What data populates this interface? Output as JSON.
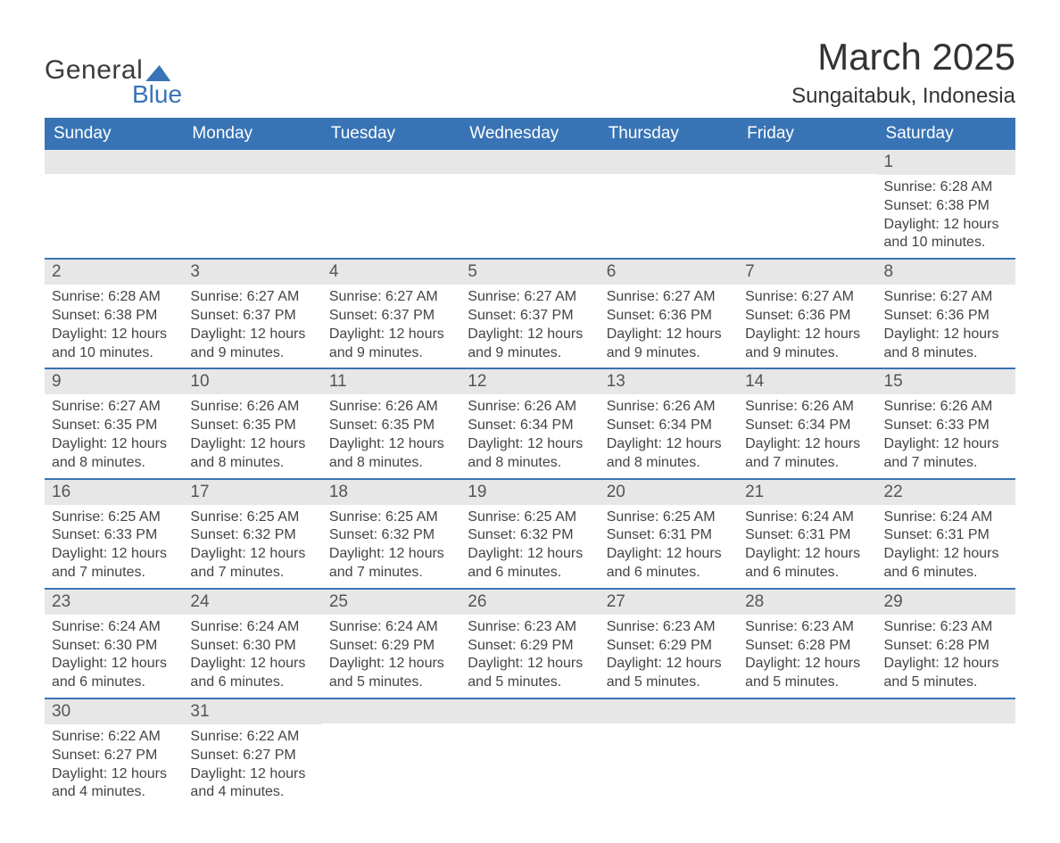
{
  "brand": {
    "part1": "General",
    "part2": "Blue"
  },
  "title": "March 2025",
  "location": "Sungaitabuk, Indonesia",
  "colors": {
    "header_bg": "#3874b5",
    "header_text": "#ffffff",
    "daybar_bg": "#e7e7e7",
    "body_text": "#444444",
    "row_border": "#3874b5"
  },
  "typography": {
    "title_fontsize": 42,
    "location_fontsize": 24,
    "header_fontsize": 19,
    "daynum_fontsize": 19,
    "detail_fontsize": 16
  },
  "layout": {
    "columns": 7,
    "rows": 6
  },
  "days_of_week": [
    "Sunday",
    "Monday",
    "Tuesday",
    "Wednesday",
    "Thursday",
    "Friday",
    "Saturday"
  ],
  "labels": {
    "sunrise": "Sunrise:",
    "sunset": "Sunset:",
    "daylight_prefix": "Daylight:"
  },
  "weeks": [
    [
      {
        "n": "",
        "sunrise": "",
        "sunset": "",
        "daylight": ""
      },
      {
        "n": "",
        "sunrise": "",
        "sunset": "",
        "daylight": ""
      },
      {
        "n": "",
        "sunrise": "",
        "sunset": "",
        "daylight": ""
      },
      {
        "n": "",
        "sunrise": "",
        "sunset": "",
        "daylight": ""
      },
      {
        "n": "",
        "sunrise": "",
        "sunset": "",
        "daylight": ""
      },
      {
        "n": "",
        "sunrise": "",
        "sunset": "",
        "daylight": ""
      },
      {
        "n": "1",
        "sunrise": "6:28 AM",
        "sunset": "6:38 PM",
        "daylight": "12 hours and 10 minutes."
      }
    ],
    [
      {
        "n": "2",
        "sunrise": "6:28 AM",
        "sunset": "6:38 PM",
        "daylight": "12 hours and 10 minutes."
      },
      {
        "n": "3",
        "sunrise": "6:27 AM",
        "sunset": "6:37 PM",
        "daylight": "12 hours and 9 minutes."
      },
      {
        "n": "4",
        "sunrise": "6:27 AM",
        "sunset": "6:37 PM",
        "daylight": "12 hours and 9 minutes."
      },
      {
        "n": "5",
        "sunrise": "6:27 AM",
        "sunset": "6:37 PM",
        "daylight": "12 hours and 9 minutes."
      },
      {
        "n": "6",
        "sunrise": "6:27 AM",
        "sunset": "6:36 PM",
        "daylight": "12 hours and 9 minutes."
      },
      {
        "n": "7",
        "sunrise": "6:27 AM",
        "sunset": "6:36 PM",
        "daylight": "12 hours and 9 minutes."
      },
      {
        "n": "8",
        "sunrise": "6:27 AM",
        "sunset": "6:36 PM",
        "daylight": "12 hours and 8 minutes."
      }
    ],
    [
      {
        "n": "9",
        "sunrise": "6:27 AM",
        "sunset": "6:35 PM",
        "daylight": "12 hours and 8 minutes."
      },
      {
        "n": "10",
        "sunrise": "6:26 AM",
        "sunset": "6:35 PM",
        "daylight": "12 hours and 8 minutes."
      },
      {
        "n": "11",
        "sunrise": "6:26 AM",
        "sunset": "6:35 PM",
        "daylight": "12 hours and 8 minutes."
      },
      {
        "n": "12",
        "sunrise": "6:26 AM",
        "sunset": "6:34 PM",
        "daylight": "12 hours and 8 minutes."
      },
      {
        "n": "13",
        "sunrise": "6:26 AM",
        "sunset": "6:34 PM",
        "daylight": "12 hours and 8 minutes."
      },
      {
        "n": "14",
        "sunrise": "6:26 AM",
        "sunset": "6:34 PM",
        "daylight": "12 hours and 7 minutes."
      },
      {
        "n": "15",
        "sunrise": "6:26 AM",
        "sunset": "6:33 PM",
        "daylight": "12 hours and 7 minutes."
      }
    ],
    [
      {
        "n": "16",
        "sunrise": "6:25 AM",
        "sunset": "6:33 PM",
        "daylight": "12 hours and 7 minutes."
      },
      {
        "n": "17",
        "sunrise": "6:25 AM",
        "sunset": "6:32 PM",
        "daylight": "12 hours and 7 minutes."
      },
      {
        "n": "18",
        "sunrise": "6:25 AM",
        "sunset": "6:32 PM",
        "daylight": "12 hours and 7 minutes."
      },
      {
        "n": "19",
        "sunrise": "6:25 AM",
        "sunset": "6:32 PM",
        "daylight": "12 hours and 6 minutes."
      },
      {
        "n": "20",
        "sunrise": "6:25 AM",
        "sunset": "6:31 PM",
        "daylight": "12 hours and 6 minutes."
      },
      {
        "n": "21",
        "sunrise": "6:24 AM",
        "sunset": "6:31 PM",
        "daylight": "12 hours and 6 minutes."
      },
      {
        "n": "22",
        "sunrise": "6:24 AM",
        "sunset": "6:31 PM",
        "daylight": "12 hours and 6 minutes."
      }
    ],
    [
      {
        "n": "23",
        "sunrise": "6:24 AM",
        "sunset": "6:30 PM",
        "daylight": "12 hours and 6 minutes."
      },
      {
        "n": "24",
        "sunrise": "6:24 AM",
        "sunset": "6:30 PM",
        "daylight": "12 hours and 6 minutes."
      },
      {
        "n": "25",
        "sunrise": "6:24 AM",
        "sunset": "6:29 PM",
        "daylight": "12 hours and 5 minutes."
      },
      {
        "n": "26",
        "sunrise": "6:23 AM",
        "sunset": "6:29 PM",
        "daylight": "12 hours and 5 minutes."
      },
      {
        "n": "27",
        "sunrise": "6:23 AM",
        "sunset": "6:29 PM",
        "daylight": "12 hours and 5 minutes."
      },
      {
        "n": "28",
        "sunrise": "6:23 AM",
        "sunset": "6:28 PM",
        "daylight": "12 hours and 5 minutes."
      },
      {
        "n": "29",
        "sunrise": "6:23 AM",
        "sunset": "6:28 PM",
        "daylight": "12 hours and 5 minutes."
      }
    ],
    [
      {
        "n": "30",
        "sunrise": "6:22 AM",
        "sunset": "6:27 PM",
        "daylight": "12 hours and 4 minutes."
      },
      {
        "n": "31",
        "sunrise": "6:22 AM",
        "sunset": "6:27 PM",
        "daylight": "12 hours and 4 minutes."
      },
      {
        "n": "",
        "sunrise": "",
        "sunset": "",
        "daylight": ""
      },
      {
        "n": "",
        "sunrise": "",
        "sunset": "",
        "daylight": ""
      },
      {
        "n": "",
        "sunrise": "",
        "sunset": "",
        "daylight": ""
      },
      {
        "n": "",
        "sunrise": "",
        "sunset": "",
        "daylight": ""
      },
      {
        "n": "",
        "sunrise": "",
        "sunset": "",
        "daylight": ""
      }
    ]
  ]
}
